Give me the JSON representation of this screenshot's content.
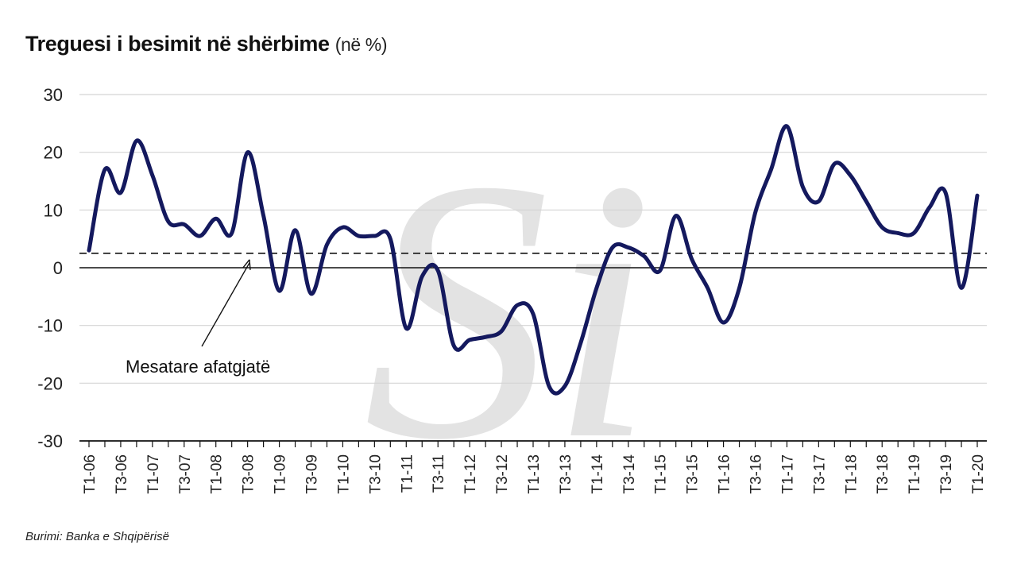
{
  "title": "Treguesi i besimit në shërbime",
  "title_unit": "(në %)",
  "source": "Burimi: Banka e Shqipërisë",
  "chart_data": {
    "type": "line",
    "title": "Treguesi i besimit në shërbime (në %)",
    "xlabel": "",
    "ylabel": "",
    "ylim": [
      -30,
      30
    ],
    "yticks": [
      30,
      20,
      10,
      0,
      -10,
      -20,
      -30
    ],
    "grid": true,
    "line_color": "#14195e",
    "watermark": "Si",
    "x_tick_labels": [
      "T1-06",
      "T3-06",
      "T1-07",
      "T3-07",
      "T1-08",
      "T3-08",
      "T1-09",
      "T3-09",
      "T1-10",
      "T3-10",
      "T1-11",
      "T3-11",
      "T1-12",
      "T3-12",
      "T1-13",
      "T3-13",
      "T1-14",
      "T3-14",
      "T1-15",
      "T3-15",
      "T1-16",
      "T3-16",
      "T1-17",
      "T3-17",
      "T1-18",
      "T3-18",
      "T1-19",
      "T3-19",
      "T1-20"
    ],
    "x": [
      "T1-06",
      "T2-06",
      "T3-06",
      "T4-06",
      "T1-07",
      "T2-07",
      "T3-07",
      "T4-07",
      "T1-08",
      "T2-08",
      "T3-08",
      "T4-08",
      "T1-09",
      "T2-09",
      "T3-09",
      "T4-09",
      "T1-10",
      "T2-10",
      "T3-10",
      "T4-10",
      "T1-11",
      "T2-11",
      "T3-11",
      "T4-11",
      "T1-12",
      "T2-12",
      "T3-12",
      "T4-12",
      "T1-13",
      "T2-13",
      "T3-13",
      "T4-13",
      "T1-14",
      "T2-14",
      "T3-14",
      "T4-14",
      "T1-15",
      "T2-15",
      "T3-15",
      "T4-15",
      "T1-16",
      "T2-16",
      "T3-16",
      "T4-16",
      "T1-17",
      "T2-17",
      "T3-17",
      "T4-17",
      "T1-18",
      "T2-18",
      "T3-18",
      "T4-18",
      "T1-19",
      "T2-19",
      "T3-19",
      "T4-19",
      "T1-20"
    ],
    "series": [
      {
        "values": [
          3,
          17,
          13,
          22,
          16,
          8,
          7.5,
          5.5,
          8.5,
          6,
          20,
          9,
          -4,
          6.5,
          -4.5,
          4,
          7,
          5.5,
          5.5,
          5,
          -10.5,
          -1.5,
          -0.5,
          -13.5,
          -12.5,
          -12,
          -11,
          -6.5,
          -8,
          -20.5,
          -20.5,
          -13,
          -3.5,
          3.5,
          3.5,
          2,
          -0.5,
          9,
          1.5,
          -3.5,
          -9.5,
          -3.5,
          9.5,
          17,
          24.5,
          14,
          11.5,
          18,
          16,
          11.5,
          7,
          6,
          6,
          10.5,
          13,
          -3.5,
          12.5
        ]
      }
    ],
    "reference_line": {
      "label": "Mesatare afatgjatë",
      "value": 2.5,
      "style": "dashed"
    }
  }
}
